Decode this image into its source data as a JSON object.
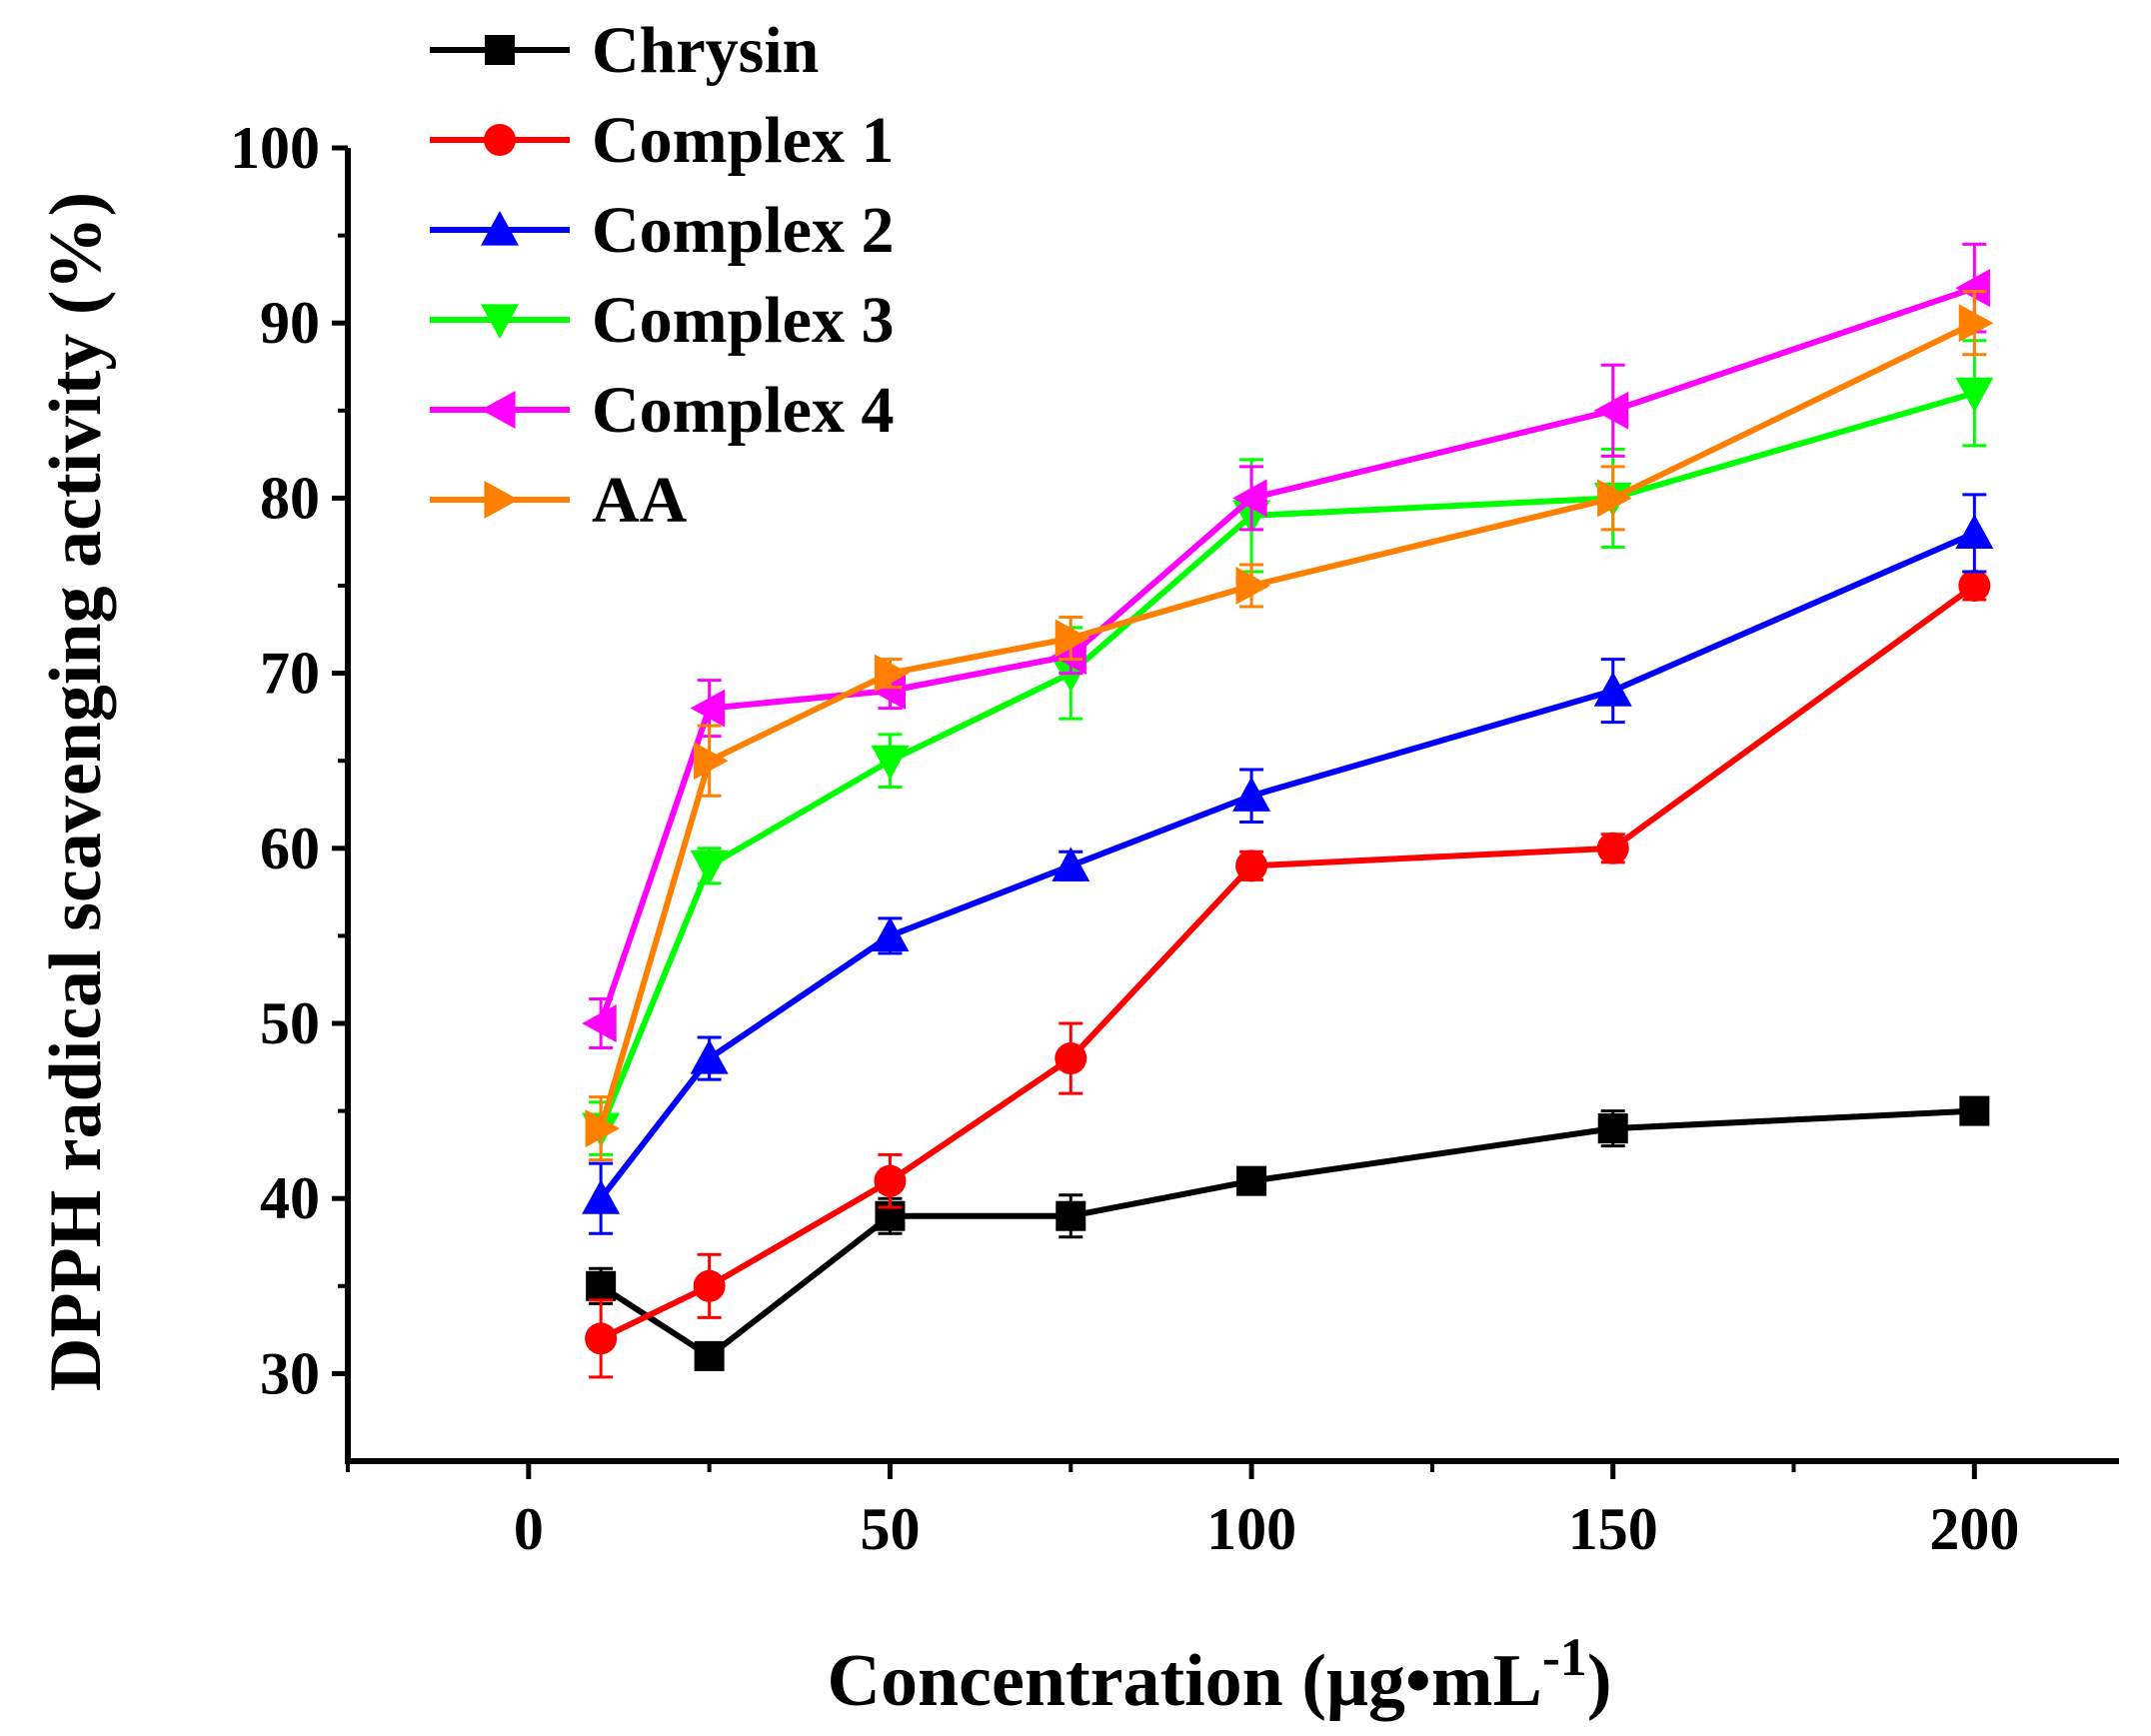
{
  "chart_data": {
    "type": "line",
    "title": "",
    "xlabel": "Concentration (μg•mL",
    "xlabel_superscript": "-1",
    "xlabel_close": ")",
    "ylabel": "DPPH radical scavenging activity (%)",
    "xlim": [
      -25,
      220
    ],
    "ylim": [
      25,
      100
    ],
    "x_ticks": [
      0,
      50,
      100,
      150,
      200
    ],
    "x_tick_labels": [
      "0",
      "50",
      "100",
      "150",
      "200"
    ],
    "y_ticks": [
      30,
      40,
      50,
      60,
      70,
      80,
      90,
      100
    ],
    "y_tick_labels": [
      "30",
      "40",
      "50",
      "60",
      "70",
      "80",
      "90",
      "100"
    ],
    "legend_position": "top-left",
    "x": [
      10,
      25,
      50,
      75,
      100,
      150,
      200
    ],
    "series": [
      {
        "name": "Chrysin",
        "color": "#000000",
        "marker": "square",
        "values": [
          35,
          31,
          39,
          39,
          41,
          44,
          45
        ],
        "errors": [
          1.0,
          0,
          1.0,
          1.2,
          0.5,
          1.0,
          0.5
        ]
      },
      {
        "name": "Complex 1",
        "color": "#ff0000",
        "marker": "circle",
        "values": [
          32,
          35,
          41,
          48,
          59,
          60,
          75
        ],
        "errors": [
          2.2,
          1.8,
          1.5,
          2.0,
          0.8,
          0.8,
          0.8
        ]
      },
      {
        "name": "Complex 2",
        "color": "#0000ff",
        "marker": "triangle-up",
        "values": [
          40,
          48,
          55,
          59,
          63,
          69,
          78
        ],
        "errors": [
          2.0,
          1.2,
          1.0,
          0.8,
          1.5,
          1.8,
          2.2
        ]
      },
      {
        "name": "Complex 3",
        "color": "#00ff00",
        "marker": "triangle-down",
        "values": [
          44,
          59,
          65,
          70,
          79,
          80,
          86
        ],
        "errors": [
          1.5,
          1.0,
          1.5,
          2.6,
          3.2,
          2.8,
          3.0
        ]
      },
      {
        "name": "Complex 4",
        "color": "#ff00ff",
        "marker": "triangle-left",
        "values": [
          50,
          68,
          69,
          71,
          80,
          85,
          92
        ],
        "errors": [
          1.4,
          1.6,
          1.0,
          1.0,
          1.8,
          2.6,
          2.5
        ]
      },
      {
        "name": "AA",
        "color": "#ff8000",
        "marker": "triangle-right",
        "values": [
          44,
          65,
          70,
          72,
          75,
          80,
          90
        ],
        "errors": [
          1.8,
          2.0,
          0.8,
          1.2,
          1.2,
          1.8,
          1.8
        ]
      }
    ]
  }
}
